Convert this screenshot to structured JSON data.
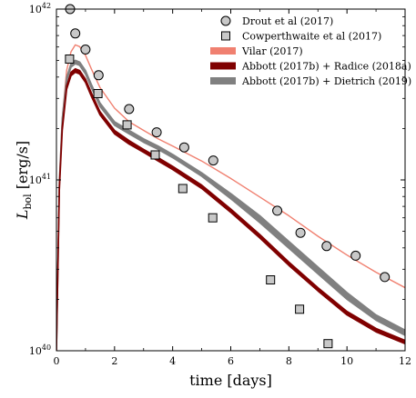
{
  "chart_data": {
    "type": "line",
    "xlabel": "time [days]",
    "ylabel": {
      "main": "L",
      "sub": "bol",
      "unit": " [erg/s]"
    },
    "xlim": [
      0,
      12
    ],
    "ylim": [
      1e+40,
      1e+42
    ],
    "yscale": "log",
    "xticks": [
      0,
      2,
      4,
      6,
      8,
      10,
      12
    ],
    "xtick_labels": [
      "0",
      "2",
      "4",
      "6",
      "8",
      "10",
      "12"
    ],
    "yticks": [
      {
        "value": 1e+40,
        "base": "10",
        "exp": "40"
      },
      {
        "value": 1e+41,
        "base": "10",
        "exp": "41"
      },
      {
        "value": 1e+42,
        "base": "10",
        "exp": "42"
      }
    ],
    "grid": false,
    "legend_position": "top-right",
    "legend": [
      {
        "label": "Drout et al (2017)",
        "kind": "circle"
      },
      {
        "label": "Cowperthwaite et al (2017)",
        "kind": "square"
      },
      {
        "label": "Vilar (2017)",
        "kind": "band",
        "color": "#f08070"
      },
      {
        "label": "Abbott (2017b) + Radice (2018a)",
        "kind": "band",
        "color": "#800000"
      },
      {
        "label": "Abbott (2017b) + Dietrich (2019)",
        "kind": "band",
        "color": "#808080"
      }
    ],
    "series": [
      {
        "name": "Vilar (2017)",
        "kind": "line",
        "color": "#f08070",
        "width": 1.4,
        "x": [
          0.0,
          0.1,
          0.2,
          0.35,
          0.5,
          0.65,
          0.8,
          1.0,
          1.2,
          1.5,
          2.0,
          2.5,
          3.0,
          3.5,
          4.0,
          5.0,
          6.0,
          7.0,
          8.0,
          9.0,
          10.0,
          11.0,
          12.0
        ],
        "y": [
          1e+40,
          9.8e+40,
          2.29e+41,
          4.37e+41,
          5.62e+41,
          6.17e+41,
          6.03e+41,
          5.37e+41,
          4.47e+41,
          3.47e+41,
          2.63e+41,
          2.19e+41,
          1.95e+41,
          1.74e+41,
          1.58e+41,
          1.29e+41,
          1.02e+41,
          7.94e+40,
          6.17e+40,
          4.68e+40,
          3.63e+40,
          2.88e+40,
          2.34e+40
        ]
      },
      {
        "name": "Abbott (2017b) + Dietrich (2019)",
        "kind": "band",
        "color": "#808080",
        "x": [
          0.0,
          0.1,
          0.2,
          0.35,
          0.5,
          0.65,
          0.8,
          1.0,
          1.2,
          1.5,
          2.0,
          2.5,
          3.0,
          3.5,
          4.0,
          5.0,
          6.0,
          7.0,
          8.0,
          9.0,
          10.0,
          11.0,
          12.0
        ],
        "y_low": [
          1e+40,
          9.33e+40,
          2.14e+41,
          3.8e+41,
          4.57e+41,
          4.79e+41,
          4.68e+41,
          4.17e+41,
          3.47e+41,
          2.69e+41,
          2.09e+41,
          1.86e+41,
          1.66e+41,
          1.51e+41,
          1.35e+41,
          1.05e+41,
          7.76e+40,
          5.62e+40,
          3.98e+40,
          2.82e+40,
          2e+40,
          1.51e+40,
          1.23e+40
        ],
        "y_high": [
          1e+40,
          9.77e+40,
          2.29e+41,
          3.98e+41,
          4.79e+41,
          5.01e+41,
          4.9e+41,
          4.37e+41,
          3.63e+41,
          2.82e+41,
          2.19e+41,
          1.95e+41,
          1.74e+41,
          1.58e+41,
          1.41e+41,
          1.1e+41,
          8.32e+40,
          6.17e+40,
          4.37e+40,
          3.09e+40,
          2.19e+40,
          1.62e+40,
          1.32e+40
        ]
      },
      {
        "name": "Abbott (2017b) + Radice (2018a)",
        "kind": "band",
        "color": "#800000",
        "x": [
          0.0,
          0.1,
          0.2,
          0.35,
          0.5,
          0.65,
          0.8,
          1.0,
          1.2,
          1.5,
          2.0,
          2.5,
          3.0,
          3.5,
          4.0,
          5.0,
          6.0,
          7.0,
          8.0,
          9.0,
          10.0,
          11.0,
          12.0
        ],
        "y_low": [
          1e+40,
          8.71e+40,
          1.95e+41,
          3.39e+41,
          4.07e+41,
          4.27e+41,
          4.17e+41,
          3.72e+41,
          3.09e+41,
          2.4e+41,
          1.86e+41,
          1.62e+41,
          1.45e+41,
          1.29e+41,
          1.15e+41,
          8.91e+40,
          6.46e+40,
          4.57e+40,
          3.16e+40,
          2.24e+40,
          1.62e+40,
          1.29e+40,
          1.1e+40
        ],
        "y_high": [
          1e+40,
          9.12e+40,
          2.04e+41,
          3.55e+41,
          4.27e+41,
          4.47e+41,
          4.37e+41,
          3.89e+41,
          3.24e+41,
          2.51e+41,
          1.95e+41,
          1.7e+41,
          1.51e+41,
          1.35e+41,
          1.2e+41,
          9.33e+40,
          6.76e+40,
          4.79e+40,
          3.31e+40,
          2.34e+40,
          1.7e+40,
          1.35e+40,
          1.15e+40
        ]
      },
      {
        "name": "Drout et al (2017)",
        "kind": "scatter",
        "marker": "circle",
        "x": [
          0.47,
          0.65,
          1.0,
          1.45,
          2.5,
          3.45,
          4.4,
          5.4,
          7.6,
          8.4,
          9.3,
          10.3,
          11.3
        ],
        "y": [
          1e+42,
          7.2e+41,
          5.8e+41,
          4.1e+41,
          2.6e+41,
          1.9e+41,
          1.55e+41,
          1.3e+41,
          6.6e+40,
          4.9e+40,
          4.1e+40,
          3.6e+40,
          2.7e+40
        ]
      },
      {
        "name": "Cowperthwaite et al (2017)",
        "kind": "scatter",
        "marker": "square",
        "x": [
          0.45,
          1.43,
          2.43,
          3.4,
          4.35,
          5.38,
          7.37,
          8.37,
          9.35
        ],
        "y": [
          5.1e+41,
          3.2e+41,
          2.1e+41,
          1.4e+41,
          8.9e+40,
          6e+40,
          2.6e+40,
          1.75e+40,
          1.1e+40
        ]
      }
    ]
  }
}
